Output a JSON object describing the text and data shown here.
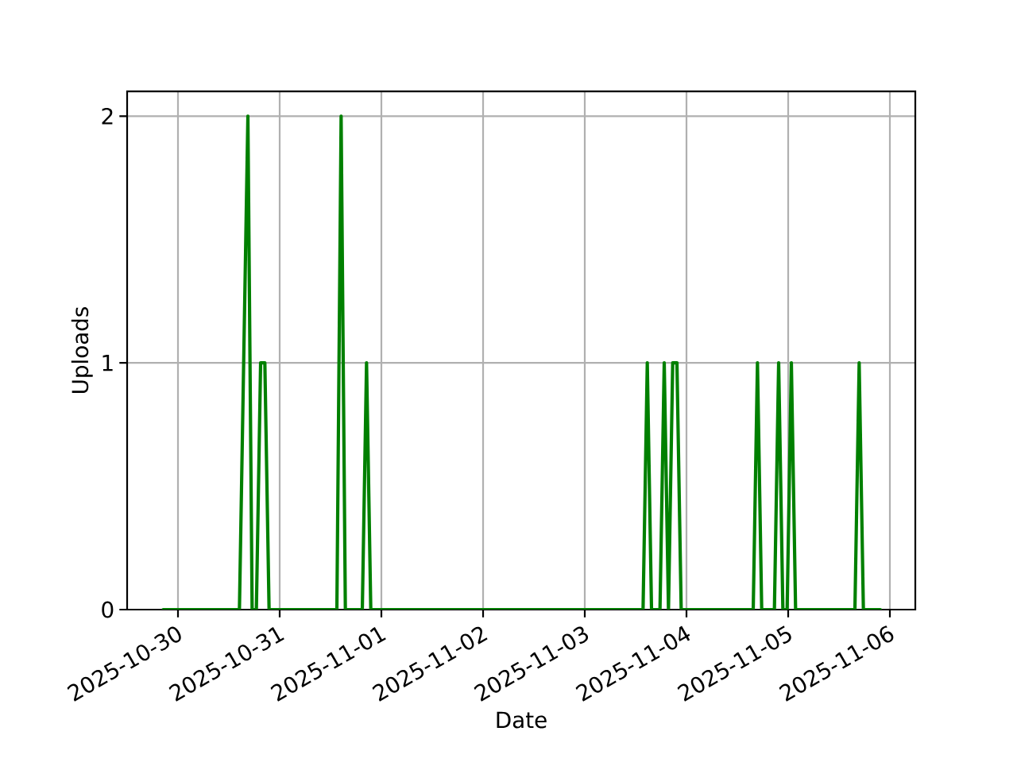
{
  "chart_data": {
    "type": "line",
    "xlabel": "Date",
    "ylabel": "Uploads",
    "x": [
      "2025-10-29T20:30",
      "2025-10-30T14:30",
      "2025-10-30T16:30",
      "2025-10-30T17:30",
      "2025-10-30T18:30",
      "2025-10-30T19:30",
      "2025-10-30T20:30",
      "2025-10-30T21:30",
      "2025-10-31T13:30",
      "2025-10-31T14:30",
      "2025-10-31T15:30",
      "2025-10-31T19:30",
      "2025-10-31T20:30",
      "2025-10-31T21:30",
      "2025-11-03T13:45",
      "2025-11-03T14:45",
      "2025-11-03T15:45",
      "2025-11-03T17:45",
      "2025-11-03T18:45",
      "2025-11-03T19:45",
      "2025-11-03T20:45",
      "2025-11-03T21:45",
      "2025-11-03T22:45",
      "2025-11-04T15:45",
      "2025-11-04T16:45",
      "2025-11-04T17:45",
      "2025-11-04T20:45",
      "2025-11-04T21:45",
      "2025-11-04T22:45",
      "2025-11-04T23:45",
      "2025-11-05T00:45",
      "2025-11-05T01:45",
      "2025-11-05T15:45",
      "2025-11-05T16:45",
      "2025-11-05T17:45",
      "2025-11-05T21:45"
    ],
    "series": [
      {
        "color": "#008000",
        "values": [
          0,
          0,
          2,
          0,
          0,
          1,
          1,
          0,
          0,
          2,
          0,
          0,
          1,
          0,
          0,
          1,
          0,
          0,
          1,
          0,
          1,
          1,
          0,
          0,
          1,
          0,
          0,
          1,
          0,
          0,
          1,
          0,
          0,
          1,
          0,
          0
        ]
      }
    ],
    "xlim": [
      "2025-10-29T12:00",
      "2025-11-06T06:00"
    ],
    "ylim": [
      0,
      2.1
    ],
    "xticks": [
      "2025-10-30",
      "2025-10-31",
      "2025-11-01",
      "2025-11-02",
      "2025-11-03",
      "2025-11-04",
      "2025-11-05",
      "2025-11-06"
    ],
    "yticks": [
      0,
      1,
      2
    ],
    "grid": true,
    "marker": "none",
    "line_style": "solid"
  }
}
